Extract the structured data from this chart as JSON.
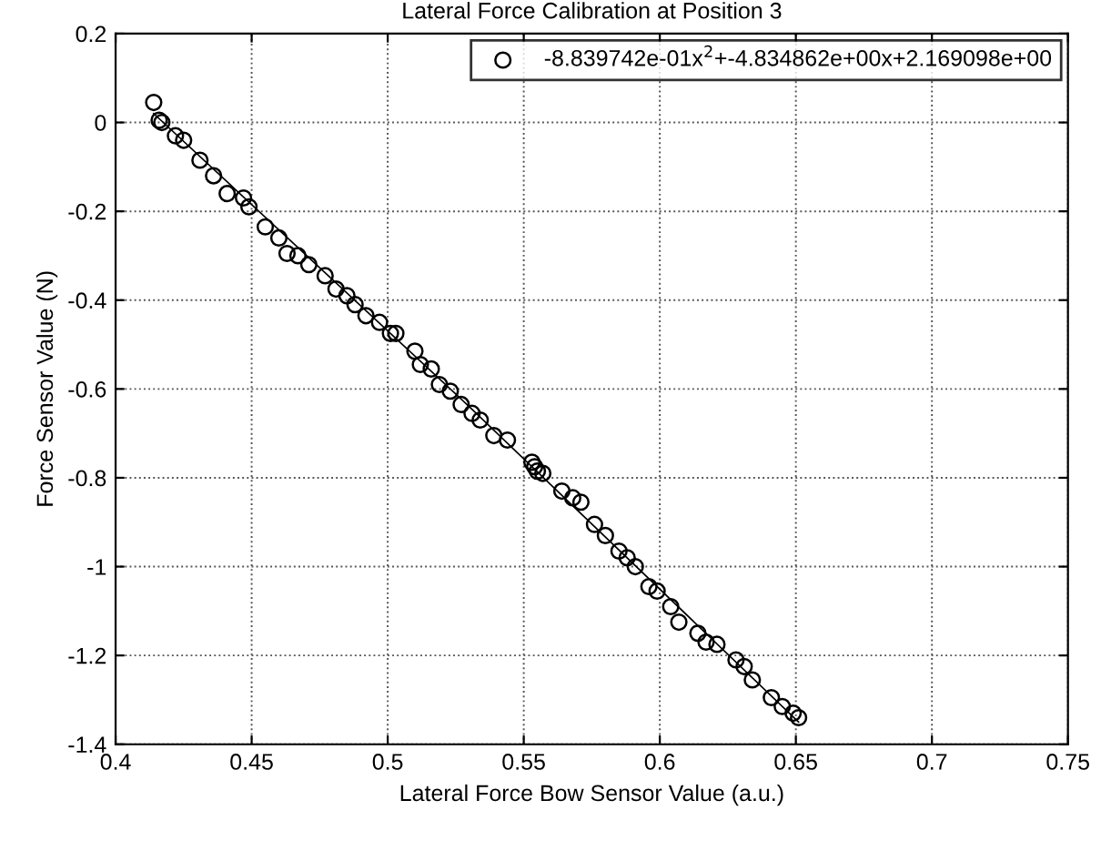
{
  "chart_data": {
    "type": "scatter",
    "title": "Lateral Force Calibration at Position 3",
    "xlabel": "Lateral Force Bow Sensor Value (a.u.)",
    "ylabel": "Force Sensor Value (N)",
    "series": [
      {
        "name": "-8.839742e-01x$^{2}$+-4.834862e+00x+2.169098e+00",
        "color": "#000000",
        "marker": "circle",
        "x": [
          0.414,
          0.416,
          0.417,
          0.422,
          0.425,
          0.431,
          0.436,
          0.441,
          0.447,
          0.449,
          0.455,
          0.46,
          0.463,
          0.467,
          0.471,
          0.477,
          0.481,
          0.485,
          0.488,
          0.492,
          0.497,
          0.501,
          0.503,
          0.51,
          0.512,
          0.516,
          0.519,
          0.523,
          0.527,
          0.531,
          0.534,
          0.539,
          0.544,
          0.553,
          0.554,
          0.555,
          0.557,
          0.564,
          0.568,
          0.571,
          0.576,
          0.58,
          0.585,
          0.588,
          0.591,
          0.596,
          0.599,
          0.604,
          0.607,
          0.614,
          0.617,
          0.621,
          0.628,
          0.631,
          0.634,
          0.641,
          0.645,
          0.649,
          0.651
        ],
        "values": [
          0.045,
          0.005,
          0.0,
          -0.03,
          -0.04,
          -0.085,
          -0.12,
          -0.16,
          -0.17,
          -0.19,
          -0.235,
          -0.26,
          -0.295,
          -0.3,
          -0.32,
          -0.345,
          -0.375,
          -0.39,
          -0.41,
          -0.435,
          -0.45,
          -0.475,
          -0.475,
          -0.515,
          -0.545,
          -0.555,
          -0.59,
          -0.605,
          -0.635,
          -0.655,
          -0.67,
          -0.705,
          -0.715,
          -0.765,
          -0.775,
          -0.785,
          -0.79,
          -0.83,
          -0.845,
          -0.855,
          -0.905,
          -0.93,
          -0.965,
          -0.98,
          -1.0,
          -1.045,
          -1.055,
          -1.09,
          -1.125,
          -1.15,
          -1.17,
          -1.175,
          -1.21,
          -1.225,
          -1.255,
          -1.295,
          -1.315,
          -1.33,
          -1.34
        ]
      },
      {
        "type": "line",
        "color": "#000000",
        "line_style": "solid",
        "x": [
          0.414,
          0.53,
          0.651
        ],
        "values": [
          0.02,
          -0.64,
          -1.35
        ]
      }
    ],
    "xlim": [
      0.4,
      0.75
    ],
    "xticks": [
      0.4,
      0.45,
      0.5,
      0.55,
      0.6,
      0.65,
      0.7,
      0.75
    ],
    "ylim": [
      -1.4,
      0.2
    ],
    "yticks": [
      -1.4,
      -1.2,
      -1,
      -0.8,
      -0.6,
      -0.4,
      -0.2,
      0,
      0.2
    ],
    "grid": true,
    "legend": "top right"
  }
}
